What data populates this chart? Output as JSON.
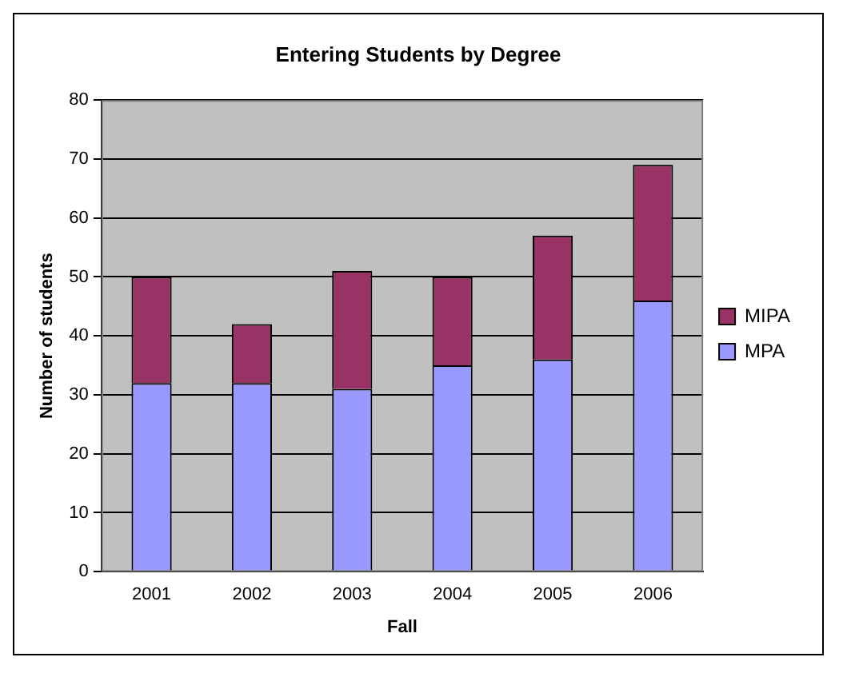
{
  "chart_data": {
    "type": "bar",
    "title": "Entering Students by Degree",
    "xlabel": "Fall",
    "ylabel": "Number of students",
    "categories": [
      "2001",
      "2002",
      "2003",
      "2004",
      "2005",
      "2006"
    ],
    "series": [
      {
        "name": "MPA",
        "color": "#9999ff",
        "values": [
          32,
          32,
          31,
          35,
          36,
          46
        ]
      },
      {
        "name": "MIPA",
        "color": "#993366",
        "values": [
          18,
          10,
          20,
          15,
          21,
          23
        ]
      }
    ],
    "stacked": true,
    "ylim": [
      0,
      80
    ],
    "yticks": [
      0,
      10,
      20,
      30,
      40,
      50,
      60,
      70,
      80
    ],
    "grid": "y",
    "legend": "right"
  }
}
